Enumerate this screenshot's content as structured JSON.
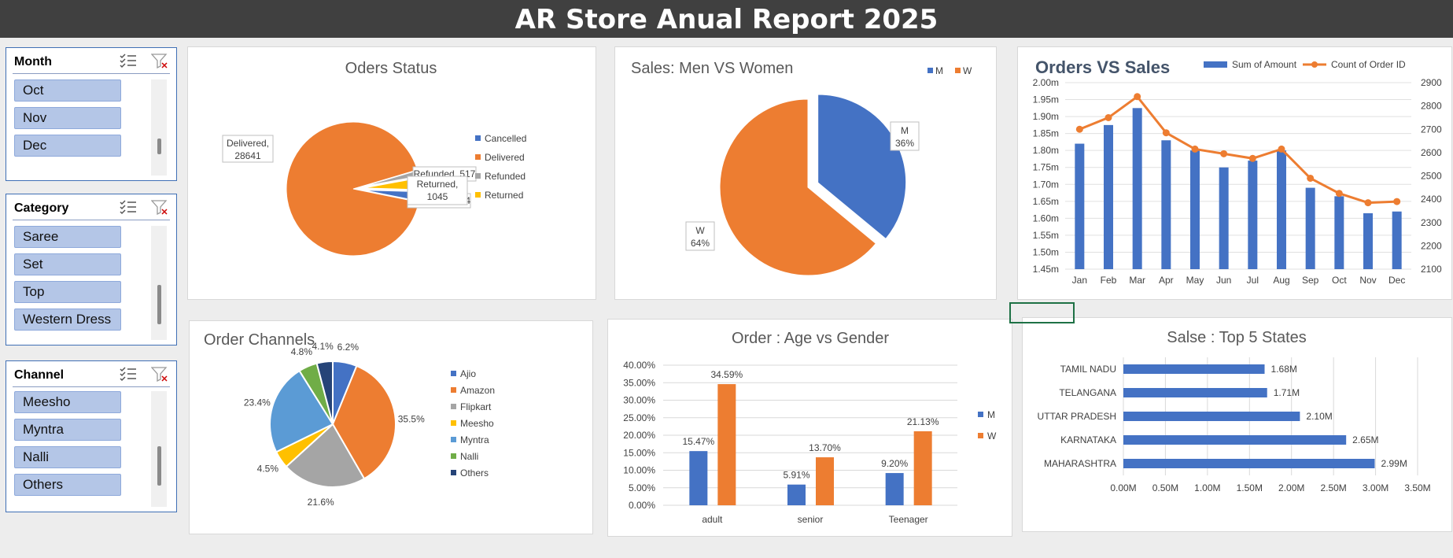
{
  "report_title": "AR Store Anual Report 2025",
  "colors": {
    "blue": "#4472c4",
    "orange": "#ed7d31",
    "gray": "#a5a5a5",
    "yellow": "#ffc000",
    "lightblue": "#5b9bd5",
    "green": "#70ad47",
    "navy": "#264478"
  },
  "slicers": [
    {
      "id": "month",
      "title": "Month",
      "items": [
        "Oct",
        "Nov",
        "Dec"
      ],
      "icons": [
        "multi-select-icon",
        "clear-filter-icon"
      ]
    },
    {
      "id": "category",
      "title": "Category",
      "items": [
        "Saree",
        "Set",
        "Top",
        "Western Dress"
      ],
      "icons": [
        "multi-select-icon",
        "clear-filter-icon"
      ]
    },
    {
      "id": "channel",
      "title": "Channel",
      "items": [
        "Meesho",
        "Myntra",
        "Nalli",
        "Others"
      ],
      "icons": [
        "multi-select-icon",
        "clear-filter-icon"
      ]
    }
  ],
  "chart_data": [
    {
      "id": "order-status",
      "type": "pie",
      "title": "Oders Status",
      "categories": [
        "Cancelled",
        "Delivered",
        "Refunded",
        "Returned"
      ],
      "values": [
        844,
        28641,
        517,
        1045
      ],
      "data_labels": [
        "Cancelled, 844",
        "Delivered,\n28641",
        "Refunded, 517",
        "Returned,\n1045"
      ],
      "legend": "right"
    },
    {
      "id": "men-vs-women",
      "type": "pie",
      "title": "Sales: Men VS Women",
      "categories": [
        "M",
        "W"
      ],
      "values": [
        36,
        64
      ],
      "data_labels": [
        "M\n36%",
        "W\n64%"
      ],
      "legend": "top-right"
    },
    {
      "id": "orders-vs-sales",
      "type": "bar",
      "title": "Orders VS Sales",
      "categories": [
        "Jan",
        "Feb",
        "Mar",
        "Apr",
        "May",
        "Jun",
        "Jul",
        "Aug",
        "Sep",
        "Oct",
        "Nov",
        "Dec"
      ],
      "series": [
        {
          "name": "Sum of Amount",
          "type": "bar",
          "axis": "left",
          "values": [
            1.82,
            1.875,
            1.925,
            1.83,
            1.8,
            1.75,
            1.77,
            1.8,
            1.69,
            1.665,
            1.615,
            1.62
          ]
        },
        {
          "name": "Count of Order ID",
          "type": "line",
          "axis": "right",
          "values": [
            2700,
            2750,
            2840,
            2685,
            2615,
            2595,
            2575,
            2615,
            2490,
            2425,
            2385,
            2390
          ]
        }
      ],
      "ylim": [
        1.45,
        2.0
      ],
      "y2lim": [
        2100,
        2900
      ],
      "yticks": [
        "1.45m",
        "1.50m",
        "1.55m",
        "1.60m",
        "1.65m",
        "1.70m",
        "1.75m",
        "1.80m",
        "1.85m",
        "1.90m",
        "1.95m",
        "2.00m"
      ],
      "y2ticks": [
        "2100",
        "2200",
        "2300",
        "2400",
        "2500",
        "2600",
        "2700",
        "2800",
        "2900"
      ],
      "grid": true,
      "legend": "top-right"
    },
    {
      "id": "order-channels",
      "type": "pie",
      "title": "Order Channels",
      "categories": [
        "Ajio",
        "Amazon",
        "Flipkart",
        "Meesho",
        "Myntra",
        "Nalli",
        "Others"
      ],
      "values": [
        6.2,
        35.5,
        21.6,
        4.5,
        23.4,
        4.8,
        4.1
      ],
      "data_labels": [
        "6.2%",
        "35.5%",
        "21.6%",
        "4.5%",
        "23.4%",
        "4.8%",
        "4.1%"
      ],
      "legend": "right"
    },
    {
      "id": "age-vs-gender",
      "type": "bar",
      "title": "Order : Age vs Gender",
      "categories": [
        "adult",
        "senior",
        "Teenager"
      ],
      "series": [
        {
          "name": "M",
          "values": [
            15.47,
            5.91,
            9.2
          ],
          "labels": [
            "15.47%",
            "5.91%",
            "9.20%"
          ]
        },
        {
          "name": "W",
          "values": [
            34.59,
            13.7,
            21.13
          ],
          "labels": [
            "34.59%",
            "13.70%",
            "21.13%"
          ]
        }
      ],
      "ylim": [
        0,
        40
      ],
      "yticks": [
        "0.00%",
        "5.00%",
        "10.00%",
        "15.00%",
        "20.00%",
        "25.00%",
        "30.00%",
        "35.00%",
        "40.00%"
      ],
      "grid": true,
      "legend": "right"
    },
    {
      "id": "top-states",
      "type": "bar",
      "orientation": "horizontal",
      "title": "Salse : Top 5 States",
      "categories": [
        "TAMIL NADU",
        "TELANGANA",
        "UTTAR PRADESH",
        "KARNATAKA",
        "MAHARASHTRA"
      ],
      "values": [
        1.68,
        1.71,
        2.1,
        2.65,
        2.99
      ],
      "labels": [
        "1.68M",
        "1.71M",
        "2.10M",
        "2.65M",
        "2.99M"
      ],
      "xlim": [
        0,
        3.5
      ],
      "xticks": [
        "0.00M",
        "0.50M",
        "1.00M",
        "1.50M",
        "2.00M",
        "2.50M",
        "3.00M",
        "3.50M"
      ],
      "grid": true
    }
  ]
}
